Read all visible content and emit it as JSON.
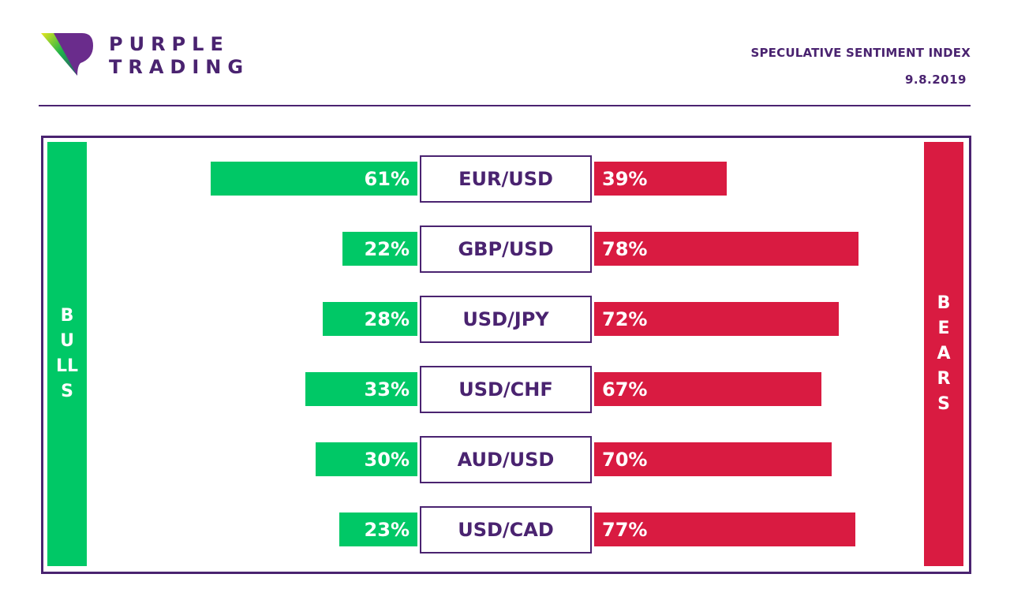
{
  "brand": {
    "name_line1": "PURPLE",
    "name_line2": "TRADING",
    "colors": {
      "purple": "#4a2370",
      "bull_green": "#00c866",
      "bear_red": "#d91b41"
    }
  },
  "header": {
    "title": "SPECULATIVE SENTIMENT INDEX",
    "date": "9.8.2019"
  },
  "chart_data": {
    "type": "bar",
    "title": "SPECULATIVE SENTIMENT INDEX",
    "subtitle": "9.8.2019",
    "orientation": "horizontal-diverging",
    "categories": [
      "EUR/USD",
      "GBP/USD",
      "USD/JPY",
      "USD/CHF",
      "AUD/USD",
      "USD/CAD"
    ],
    "series": [
      {
        "name": "BULLS",
        "values": [
          61,
          22,
          28,
          33,
          30,
          23
        ],
        "labels": [
          "61%",
          "22%",
          "28%",
          "33%",
          "30%",
          "23%"
        ]
      },
      {
        "name": "BEARS",
        "values": [
          39,
          78,
          72,
          67,
          70,
          77
        ],
        "labels": [
          "39%",
          "78%",
          "72%",
          "67%",
          "70%",
          "77%"
        ]
      }
    ],
    "unit": "%",
    "side_labels": {
      "left": "BULLS",
      "right": "BEARS"
    }
  }
}
